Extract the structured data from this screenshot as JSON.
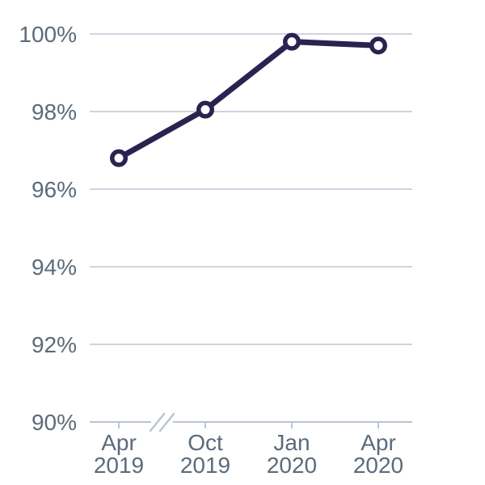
{
  "chart_data": {
    "type": "line",
    "categories": [
      "Apr 2019",
      "Oct 2019",
      "Jan 2020",
      "Apr 2020"
    ],
    "values": [
      96.8,
      98.05,
      99.8,
      99.7
    ],
    "ylim": [
      90,
      100
    ],
    "yticks": [
      90,
      92,
      94,
      96,
      98,
      100
    ],
    "ytick_suffix": "%",
    "grid": "horizontal-only",
    "legend": "none",
    "axis_break_between": [
      "Apr 2019",
      "Oct 2019"
    ],
    "marker_style": "open-circle",
    "colors": {
      "line": "#2a2351",
      "marker_fill": "#ffffff",
      "marker_stroke": "#2a2351",
      "gridline": "#ccd6e0",
      "axis": "#b9c5d3",
      "tick_label": "#5b6b7b",
      "background": "#ffffff"
    }
  }
}
